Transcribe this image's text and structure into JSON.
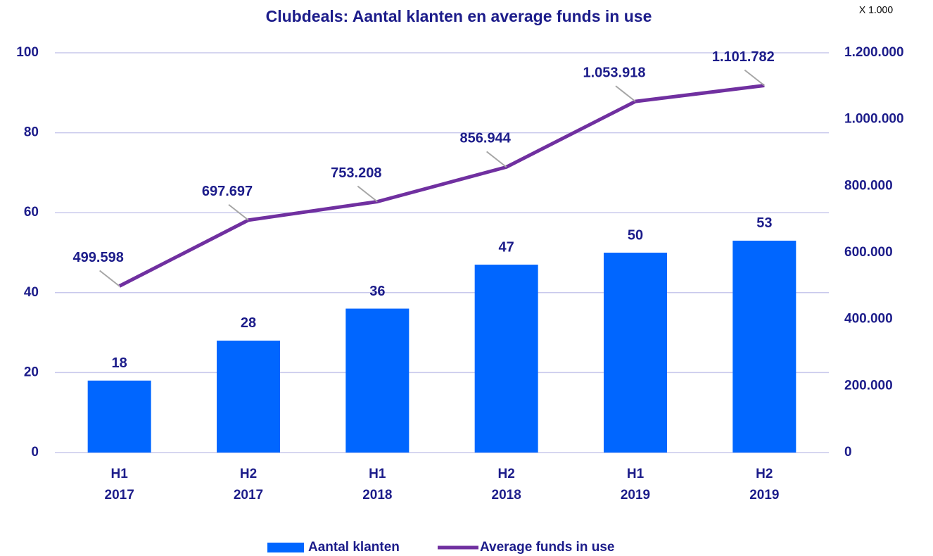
{
  "chart_data": {
    "type": "bar",
    "title": "Clubdeals: Aantal klanten en average funds in use",
    "annotation": "X 1.000",
    "categories": [
      "H1 2017",
      "H2 2017",
      "H1 2018",
      "H2 2018",
      "H1 2019",
      "H2 2019"
    ],
    "series": [
      {
        "name": "Aantal klanten",
        "type": "bar",
        "color": "#0066ff",
        "values": [
          18,
          28,
          36,
          47,
          50,
          53
        ]
      },
      {
        "name": "Average funds in use",
        "type": "line",
        "color": "#7030a0",
        "axis": "y2",
        "values": [
          499598,
          697697,
          753208,
          856944,
          1053918,
          1101782
        ],
        "value_labels": [
          "499.598",
          "697.697",
          "753.208",
          "856.944",
          "1.053.918",
          "1.101.782"
        ]
      }
    ],
    "ylim": [
      0,
      100
    ],
    "yticks": [
      0,
      20,
      40,
      60,
      80,
      100
    ],
    "y2lim": [
      0,
      1200000
    ],
    "y2ticks": [
      0,
      {
        "value": 200000,
        "label": "200.000"
      },
      {
        "value": 400000,
        "label": "400.000"
      },
      {
        "value": 600000,
        "label": "600.000"
      },
      {
        "value": 800000,
        "label": "800.000"
      },
      {
        "value": 1000000,
        "label": "1.000.000"
      },
      {
        "value": 1200000,
        "label": "1.200.000"
      }
    ],
    "grid": true,
    "legend": "bottom"
  }
}
